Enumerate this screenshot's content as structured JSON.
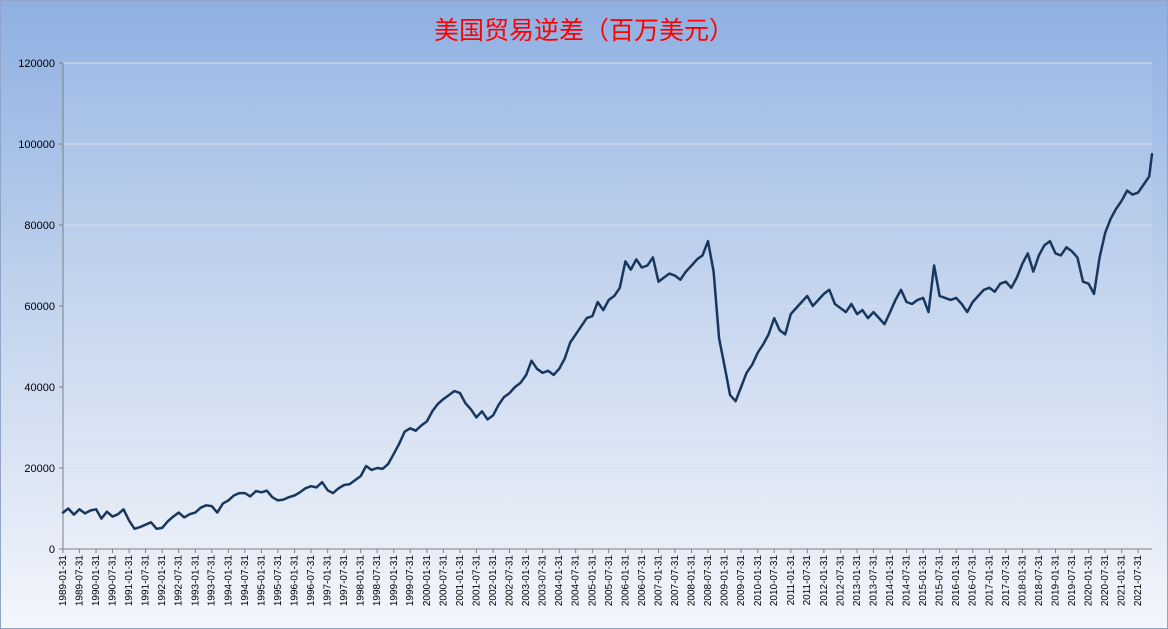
{
  "chart_data": {
    "type": "line",
    "title": "美国贸易逆差（百万美元）",
    "xlabel": "",
    "ylabel": "",
    "ylim": [
      0,
      120000
    ],
    "yticks": [
      0,
      20000,
      40000,
      60000,
      80000,
      100000,
      120000
    ],
    "xlim": [
      "1989-01-31",
      "2021-12-31"
    ],
    "x_tick_labels": [
      "1989-01-31",
      "1989-07-31",
      "1990-01-31",
      "1990-07-31",
      "1991-01-31",
      "1991-07-31",
      "1992-01-31",
      "1992-07-31",
      "1993-01-31",
      "1993-07-31",
      "1994-01-31",
      "1994-07-31",
      "1995-01-31",
      "1995-07-31",
      "1996-01-31",
      "1996-07-31",
      "1997-01-31",
      "1997-07-31",
      "1998-01-31",
      "1998-07-31",
      "1999-01-31",
      "1999-07-31",
      "2000-01-31",
      "2000-07-31",
      "2001-01-31",
      "2001-07-31",
      "2002-01-31",
      "2002-07-31",
      "2003-01-31",
      "2003-07-31",
      "2004-01-31",
      "2004-07-31",
      "2005-01-31",
      "2005-07-31",
      "2006-01-31",
      "2006-07-31",
      "2007-01-31",
      "2007-07-31",
      "2008-01-31",
      "2008-07-31",
      "2009-01-31",
      "2009-07-31",
      "2010-01-31",
      "2010-07-31",
      "2011-01-31",
      "2011-07-31",
      "2012-01-31",
      "2012-07-31",
      "2013-01-31",
      "2013-07-31",
      "2014-01-31",
      "2014-07-31",
      "2015-01-31",
      "2015-07-31",
      "2016-01-31",
      "2016-07-31",
      "2017-01-31",
      "2017-07-31",
      "2018-01-31",
      "2018-07-31",
      "2019-01-31",
      "2019-07-31",
      "2020-01-31",
      "2020-07-31",
      "2021-01-31",
      "2021-07-31"
    ],
    "grid": true,
    "line_color": "#17375e",
    "series": [
      {
        "name": "",
        "points": [
          [
            "1989-01-31",
            9000
          ],
          [
            "1989-03-31",
            10000
          ],
          [
            "1989-05-31",
            8500
          ],
          [
            "1989-07-31",
            9800
          ],
          [
            "1989-09-31",
            8800
          ],
          [
            "1989-11-30",
            9500
          ],
          [
            "1990-01-31",
            9800
          ],
          [
            "1990-03-31",
            7500
          ],
          [
            "1990-05-31",
            9200
          ],
          [
            "1990-07-31",
            8000
          ],
          [
            "1990-09-30",
            8600
          ],
          [
            "1990-11-30",
            9800
          ],
          [
            "1991-01-31",
            7000
          ],
          [
            "1991-03-31",
            5000
          ],
          [
            "1991-05-31",
            5400
          ],
          [
            "1991-07-31",
            6000
          ],
          [
            "1991-09-30",
            6600
          ],
          [
            "1991-11-30",
            5000
          ],
          [
            "1992-01-31",
            5200
          ],
          [
            "1992-03-31",
            6800
          ],
          [
            "1992-05-31",
            8000
          ],
          [
            "1992-07-31",
            9000
          ],
          [
            "1992-09-30",
            7800
          ],
          [
            "1992-11-30",
            8600
          ],
          [
            "1993-01-31",
            9000
          ],
          [
            "1993-03-31",
            10200
          ],
          [
            "1993-05-31",
            10800
          ],
          [
            "1993-07-31",
            10600
          ],
          [
            "1993-09-30",
            9000
          ],
          [
            "1993-11-30",
            11200
          ],
          [
            "1994-01-31",
            12000
          ],
          [
            "1994-03-31",
            13200
          ],
          [
            "1994-05-31",
            13800
          ],
          [
            "1994-07-31",
            13800
          ],
          [
            "1994-09-30",
            13000
          ],
          [
            "1994-11-30",
            14300
          ],
          [
            "1995-01-31",
            14000
          ],
          [
            "1995-03-31",
            14400
          ],
          [
            "1995-05-31",
            12800
          ],
          [
            "1995-07-31",
            12000
          ],
          [
            "1995-09-30",
            12200
          ],
          [
            "1995-11-30",
            12800
          ],
          [
            "1996-01-31",
            13200
          ],
          [
            "1996-03-31",
            14000
          ],
          [
            "1996-05-31",
            15000
          ],
          [
            "1996-07-31",
            15500
          ],
          [
            "1996-09-30",
            15200
          ],
          [
            "1996-11-30",
            16500
          ],
          [
            "1997-01-31",
            14500
          ],
          [
            "1997-03-31",
            13800
          ],
          [
            "1997-05-31",
            15000
          ],
          [
            "1997-07-31",
            15800
          ],
          [
            "1997-09-30",
            16000
          ],
          [
            "1997-11-30",
            17000
          ],
          [
            "1998-01-31",
            18000
          ],
          [
            "1998-03-31",
            20500
          ],
          [
            "1998-05-31",
            19500
          ],
          [
            "1998-07-31",
            20000
          ],
          [
            "1998-09-30",
            19800
          ],
          [
            "1998-11-30",
            21000
          ],
          [
            "1999-01-31",
            23500
          ],
          [
            "1999-03-31",
            26000
          ],
          [
            "1999-05-31",
            29000
          ],
          [
            "1999-07-31",
            29800
          ],
          [
            "1999-09-30",
            29200
          ],
          [
            "1999-11-30",
            30500
          ],
          [
            "2000-01-31",
            31500
          ],
          [
            "2000-03-31",
            34000
          ],
          [
            "2000-05-31",
            35800
          ],
          [
            "2000-07-31",
            37000
          ],
          [
            "2000-09-30",
            38000
          ],
          [
            "2000-11-30",
            39000
          ],
          [
            "2001-01-31",
            38500
          ],
          [
            "2001-03-31",
            36000
          ],
          [
            "2001-05-31",
            34500
          ],
          [
            "2001-07-31",
            32500
          ],
          [
            "2001-09-30",
            34000
          ],
          [
            "2001-11-30",
            32000
          ],
          [
            "2002-01-31",
            33000
          ],
          [
            "2002-03-31",
            35500
          ],
          [
            "2002-05-31",
            37500
          ],
          [
            "2002-07-31",
            38500
          ],
          [
            "2002-09-30",
            40000
          ],
          [
            "2002-11-30",
            41000
          ],
          [
            "2003-01-31",
            43000
          ],
          [
            "2003-03-31",
            46500
          ],
          [
            "2003-05-31",
            44500
          ],
          [
            "2003-07-31",
            43500
          ],
          [
            "2003-09-30",
            44000
          ],
          [
            "2003-11-30",
            43000
          ],
          [
            "2004-01-31",
            44500
          ],
          [
            "2004-03-31",
            47000
          ],
          [
            "2004-05-31",
            51000
          ],
          [
            "2004-07-31",
            53000
          ],
          [
            "2004-09-30",
            55000
          ],
          [
            "2004-11-30",
            57000
          ],
          [
            "2005-01-31",
            57500
          ],
          [
            "2005-03-31",
            61000
          ],
          [
            "2005-05-31",
            59000
          ],
          [
            "2005-07-31",
            61500
          ],
          [
            "2005-09-30",
            62500
          ],
          [
            "2005-11-30",
            64500
          ],
          [
            "2006-01-31",
            71000
          ],
          [
            "2006-03-31",
            69000
          ],
          [
            "2006-05-31",
            71500
          ],
          [
            "2006-07-31",
            69500
          ],
          [
            "2006-09-30",
            70000
          ],
          [
            "2006-11-30",
            72000
          ],
          [
            "2007-01-31",
            66000
          ],
          [
            "2007-03-31",
            67000
          ],
          [
            "2007-05-31",
            68000
          ],
          [
            "2007-07-31",
            67500
          ],
          [
            "2007-09-30",
            66500
          ],
          [
            "2007-11-30",
            68500
          ],
          [
            "2008-01-31",
            70000
          ],
          [
            "2008-03-31",
            71500
          ],
          [
            "2008-05-31",
            72500
          ],
          [
            "2008-07-31",
            76000
          ],
          [
            "2008-09-30",
            68500
          ],
          [
            "2008-11-30",
            52000
          ],
          [
            "2009-01-31",
            45000
          ],
          [
            "2009-03-31",
            38000
          ],
          [
            "2009-05-31",
            36500
          ],
          [
            "2009-07-31",
            40000
          ],
          [
            "2009-09-30",
            43500
          ],
          [
            "2009-11-30",
            45500
          ],
          [
            "2010-01-31",
            48500
          ],
          [
            "2010-03-31",
            50500
          ],
          [
            "2010-05-31",
            53000
          ],
          [
            "2010-07-31",
            57000
          ],
          [
            "2010-09-30",
            54000
          ],
          [
            "2010-11-30",
            53000
          ],
          [
            "2011-01-31",
            58000
          ],
          [
            "2011-03-31",
            59500
          ],
          [
            "2011-05-31",
            61000
          ],
          [
            "2011-07-31",
            62500
          ],
          [
            "2011-09-30",
            60000
          ],
          [
            "2011-11-30",
            61500
          ],
          [
            "2012-01-31",
            63000
          ],
          [
            "2012-03-31",
            64000
          ],
          [
            "2012-05-31",
            60500
          ],
          [
            "2012-07-31",
            59500
          ],
          [
            "2012-09-30",
            58500
          ],
          [
            "2012-11-30",
            60500
          ],
          [
            "2013-01-31",
            58000
          ],
          [
            "2013-03-31",
            59000
          ],
          [
            "2013-05-31",
            57000
          ],
          [
            "2013-07-31",
            58500
          ],
          [
            "2013-09-30",
            57000
          ],
          [
            "2013-11-30",
            55500
          ],
          [
            "2014-01-31",
            58500
          ],
          [
            "2014-03-31",
            61500
          ],
          [
            "2014-05-31",
            64000
          ],
          [
            "2014-07-31",
            61000
          ],
          [
            "2014-09-30",
            60500
          ],
          [
            "2014-11-30",
            61500
          ],
          [
            "2015-01-31",
            62000
          ],
          [
            "2015-03-31",
            58500
          ],
          [
            "2015-05-31",
            70000
          ],
          [
            "2015-07-31",
            62500
          ],
          [
            "2015-09-30",
            62000
          ],
          [
            "2015-11-30",
            61500
          ],
          [
            "2016-01-31",
            62000
          ],
          [
            "2016-03-31",
            60500
          ],
          [
            "2016-05-31",
            58500
          ],
          [
            "2016-07-31",
            61000
          ],
          [
            "2016-09-30",
            62500
          ],
          [
            "2016-11-30",
            64000
          ],
          [
            "2017-01-31",
            64500
          ],
          [
            "2017-03-31",
            63500
          ],
          [
            "2017-05-31",
            65500
          ],
          [
            "2017-07-31",
            66000
          ],
          [
            "2017-09-30",
            64500
          ],
          [
            "2017-11-30",
            67000
          ],
          [
            "2018-01-31",
            70500
          ],
          [
            "2018-03-31",
            73000
          ],
          [
            "2018-05-31",
            68500
          ],
          [
            "2018-07-31",
            72500
          ],
          [
            "2018-09-30",
            75000
          ],
          [
            "2018-11-30",
            76000
          ],
          [
            "2019-01-31",
            73000
          ],
          [
            "2019-03-31",
            72500
          ],
          [
            "2019-05-31",
            74500
          ],
          [
            "2019-07-31",
            73500
          ],
          [
            "2019-09-30",
            72000
          ],
          [
            "2019-11-30",
            66000
          ],
          [
            "2020-01-31",
            65500
          ],
          [
            "2020-03-31",
            63000
          ],
          [
            "2020-05-31",
            72000
          ],
          [
            "2020-07-31",
            78000
          ],
          [
            "2020-09-30",
            81500
          ],
          [
            "2020-11-30",
            84000
          ],
          [
            "2021-01-31",
            86000
          ],
          [
            "2021-03-31",
            88500
          ],
          [
            "2021-05-31",
            87500
          ],
          [
            "2021-07-31",
            88000
          ],
          [
            "2021-09-30",
            90000
          ],
          [
            "2021-11-30",
            92000
          ],
          [
            "2021-12-31",
            97500
          ]
        ]
      }
    ]
  }
}
